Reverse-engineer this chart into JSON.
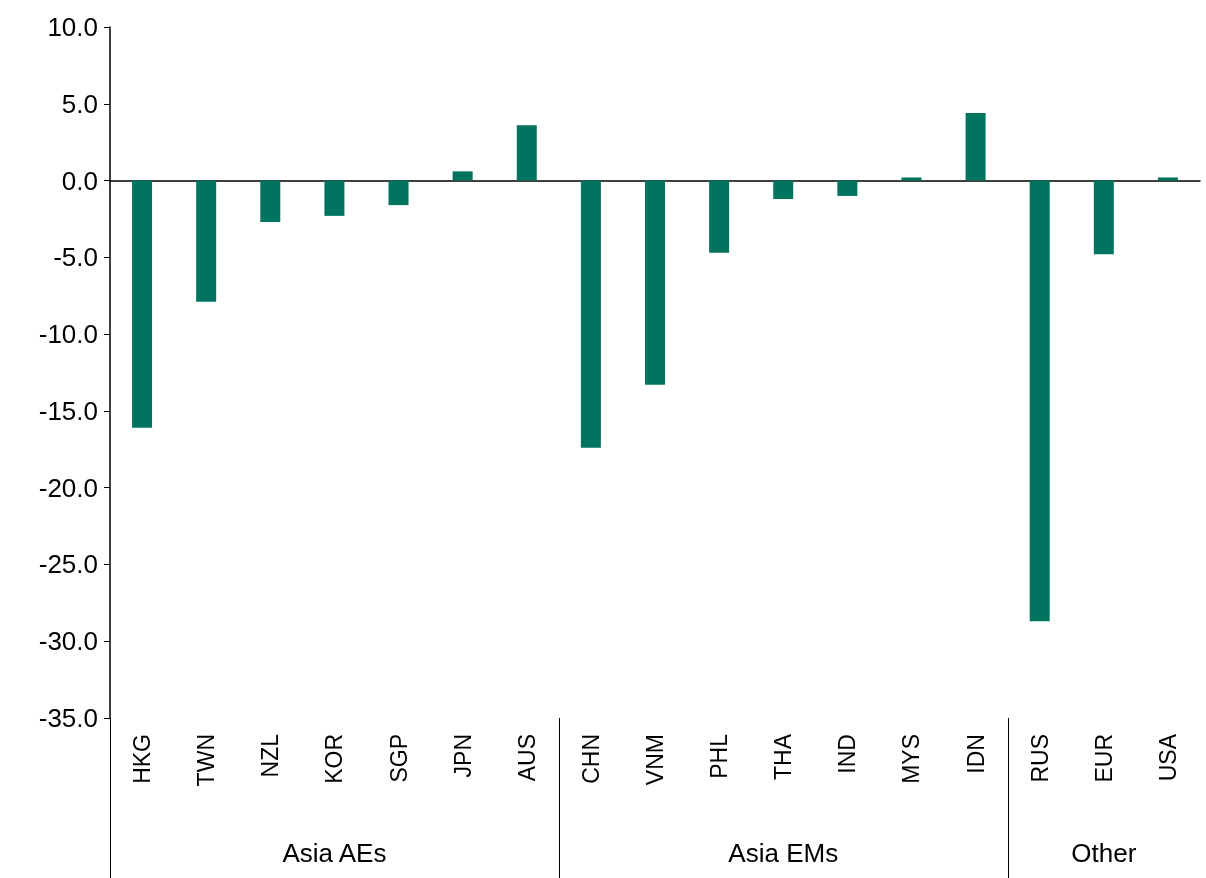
{
  "chart_data": {
    "type": "bar",
    "categories": [
      "HKG",
      "TWN",
      "NZL",
      "KOR",
      "SGP",
      "JPN",
      "AUS",
      "CHN",
      "VNM",
      "PHL",
      "THA",
      "IND",
      "MYS",
      "IDN",
      "RUS",
      "EUR",
      "USA"
    ],
    "values": [
      -16.1,
      -7.9,
      -2.7,
      -2.3,
      -1.6,
      0.6,
      3.6,
      -17.4,
      -13.3,
      -4.7,
      -1.2,
      -1.0,
      0.2,
      4.4,
      -28.7,
      -4.8,
      0.2
    ],
    "color": "#00745f",
    "ylim": [
      -35,
      10
    ],
    "yticks": [
      {
        "value": -35,
        "label": "-35.0"
      },
      {
        "value": -30,
        "label": "-30.0"
      },
      {
        "value": -25,
        "label": "-25.0"
      },
      {
        "value": -20,
        "label": "-20.0"
      },
      {
        "value": -15,
        "label": "-15.0"
      },
      {
        "value": -10,
        "label": "-10.0"
      },
      {
        "value": -5,
        "label": "-5.0"
      },
      {
        "value": 0,
        "label": "0.0"
      },
      {
        "value": 5,
        "label": "5.0"
      },
      {
        "value": 10,
        "label": "10.0"
      }
    ],
    "annotations": [
      "Asia AEs",
      "Asia EMs",
      "Other"
    ]
  }
}
